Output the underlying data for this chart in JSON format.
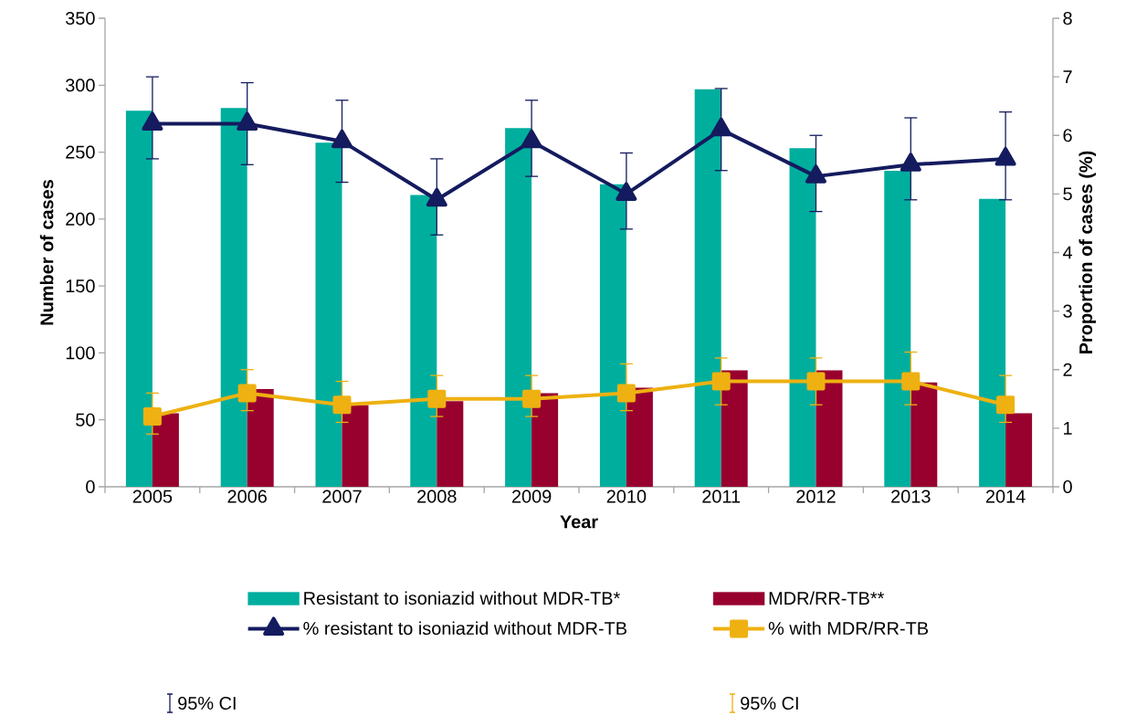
{
  "chart_data": {
    "type": "bar",
    "xlabel": "Year",
    "ylabel": "Number of cases",
    "y2label": "Proportion of cases (%)",
    "categories": [
      "2005",
      "2006",
      "2007",
      "2008",
      "2009",
      "2010",
      "2011",
      "2012",
      "2013",
      "2014"
    ],
    "ylim": [
      0,
      350
    ],
    "yticks": [
      0,
      50,
      100,
      150,
      200,
      250,
      300,
      350
    ],
    "y2lim": [
      0,
      8
    ],
    "y2ticks": [
      0,
      1,
      2,
      3,
      4,
      5,
      6,
      7,
      8
    ],
    "legend": "bottom",
    "series": [
      {
        "name": "Resistant to isoniazid without MDR-TB*",
        "color": "#00ae9e",
        "values": [
          281,
          283,
          257,
          218,
          268,
          226,
          297,
          253,
          236,
          215
        ]
      },
      {
        "name": "MDR/RR-TB**",
        "color": "#98002e",
        "values": [
          55,
          73,
          61,
          64,
          70,
          74,
          87,
          87,
          78,
          55
        ]
      },
      {
        "name": "% resistant to isoniazid without MDR-TB",
        "type": "line",
        "axis": "y2",
        "marker": "triangle",
        "color": "#141b5e",
        "values": [
          6.2,
          6.2,
          5.9,
          4.9,
          5.9,
          5.0,
          6.1,
          5.3,
          5.5,
          5.6
        ],
        "errors": [
          [
            5.6,
            7.0
          ],
          [
            5.5,
            6.9
          ],
          [
            5.2,
            6.6
          ],
          [
            4.3,
            5.6
          ],
          [
            5.3,
            6.6
          ],
          [
            4.4,
            5.7
          ],
          [
            5.4,
            6.8
          ],
          [
            4.7,
            6.0
          ],
          [
            4.9,
            6.3
          ],
          [
            4.9,
            6.4
          ]
        ]
      },
      {
        "name": "% with MDR/RR-TB",
        "type": "line",
        "axis": "y2",
        "marker": "square",
        "color": "#eeb111",
        "values": [
          1.2,
          1.6,
          1.4,
          1.5,
          1.5,
          1.6,
          1.8,
          1.8,
          1.8,
          1.4
        ],
        "errors": [
          [
            0.9,
            1.6
          ],
          [
            1.3,
            2.0
          ],
          [
            1.1,
            1.8
          ],
          [
            1.2,
            1.9
          ],
          [
            1.2,
            1.9
          ],
          [
            1.3,
            2.1
          ],
          [
            1.4,
            2.2
          ],
          [
            1.4,
            2.2
          ],
          [
            1.4,
            2.3
          ],
          [
            1.1,
            1.9
          ]
        ]
      }
    ],
    "annotations": [
      "95% CI",
      "95% CI"
    ]
  }
}
